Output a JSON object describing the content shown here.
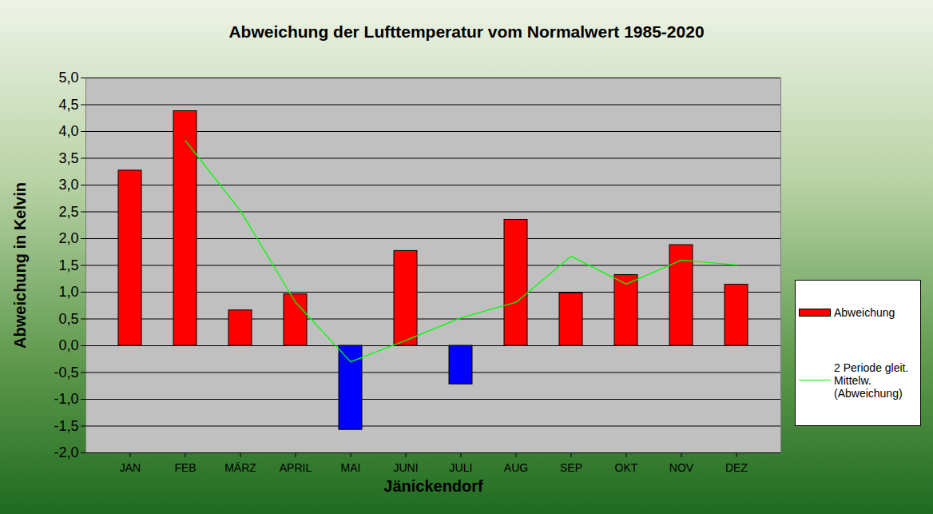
{
  "chart_data": {
    "type": "bar",
    "title": "Abweichung der Lufttemperatur vom Normalwert 1985-2020",
    "x_label": "Jänickendorf",
    "y_label": "Abweichung in Kelvin",
    "categories": [
      "JAN",
      "FEB",
      "MÄRZ",
      "APRIL",
      "MAI",
      "JUNI",
      "JULI",
      "AUG",
      "SEP",
      "OKT",
      "NOV",
      "DEZ"
    ],
    "series": [
      {
        "name": "Abweichung",
        "type": "bar",
        "color": "#ff0000",
        "colors": [
          "#ff0000",
          "#ff0000",
          "#ff0000",
          "#ff0000",
          "#0000ff",
          "#ff0000",
          "#0000ff",
          "#ff0000",
          "#ff0000",
          "#ff0000",
          "#ff0000",
          "#ff0000"
        ],
        "values": [
          3.27,
          4.38,
          0.66,
          0.96,
          -1.57,
          1.77,
          -0.72,
          2.35,
          0.98,
          1.32,
          1.88,
          1.14
        ]
      },
      {
        "name": "2 Periode gleit. Mittelw. (Abweichung)",
        "type": "line",
        "color": "#00ff00",
        "line_style": "solid",
        "values": [
          null,
          3.83,
          2.52,
          0.81,
          -0.3,
          0.1,
          0.52,
          0.81,
          1.67,
          1.15,
          1.6,
          1.51
        ]
      }
    ],
    "ylim": [
      -2,
      5
    ],
    "yticks": [
      {
        "value": -2,
        "label": "-2,0"
      },
      {
        "value": -1.5,
        "label": "-1,5"
      },
      {
        "value": -1,
        "label": "-1,0"
      },
      {
        "value": -0.5,
        "label": "-0,5"
      },
      {
        "value": 0,
        "label": "0,0"
      },
      {
        "value": 0.5,
        "label": "0,5"
      },
      {
        "value": 1,
        "label": "1,0"
      },
      {
        "value": 1.5,
        "label": "1,5"
      },
      {
        "value": 2,
        "label": "2,0"
      },
      {
        "value": 2.5,
        "label": "2,5"
      },
      {
        "value": 3,
        "label": "3,0"
      },
      {
        "value": 3.5,
        "label": "3,5"
      },
      {
        "value": 4,
        "label": "4,0"
      },
      {
        "value": 4.5,
        "label": "4,5"
      },
      {
        "value": 5,
        "label": "5,0"
      }
    ],
    "grid": true,
    "legend": "right"
  }
}
